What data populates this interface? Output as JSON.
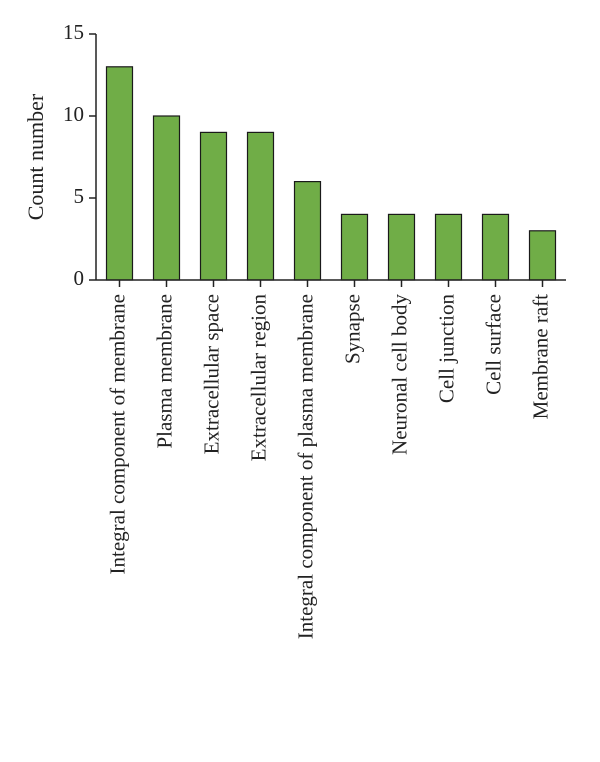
{
  "chart_data": {
    "type": "bar",
    "title": "",
    "xlabel": "",
    "ylabel": "Count number",
    "ylim": [
      0,
      15
    ],
    "yticks": [
      0,
      5,
      10,
      15
    ],
    "grid": false,
    "categories": [
      "Integral component of membrane",
      "Plasma membrane",
      "Extracellular space",
      "Extracellular region",
      "Integral component of plasma membrane",
      "Synapse",
      "Neuronal cell body",
      "Cell junction",
      "Cell surface",
      "Membrane raft"
    ],
    "values": [
      13,
      10,
      9,
      9,
      6,
      4,
      4,
      4,
      4,
      3
    ],
    "bar_color": "#70ad47"
  }
}
